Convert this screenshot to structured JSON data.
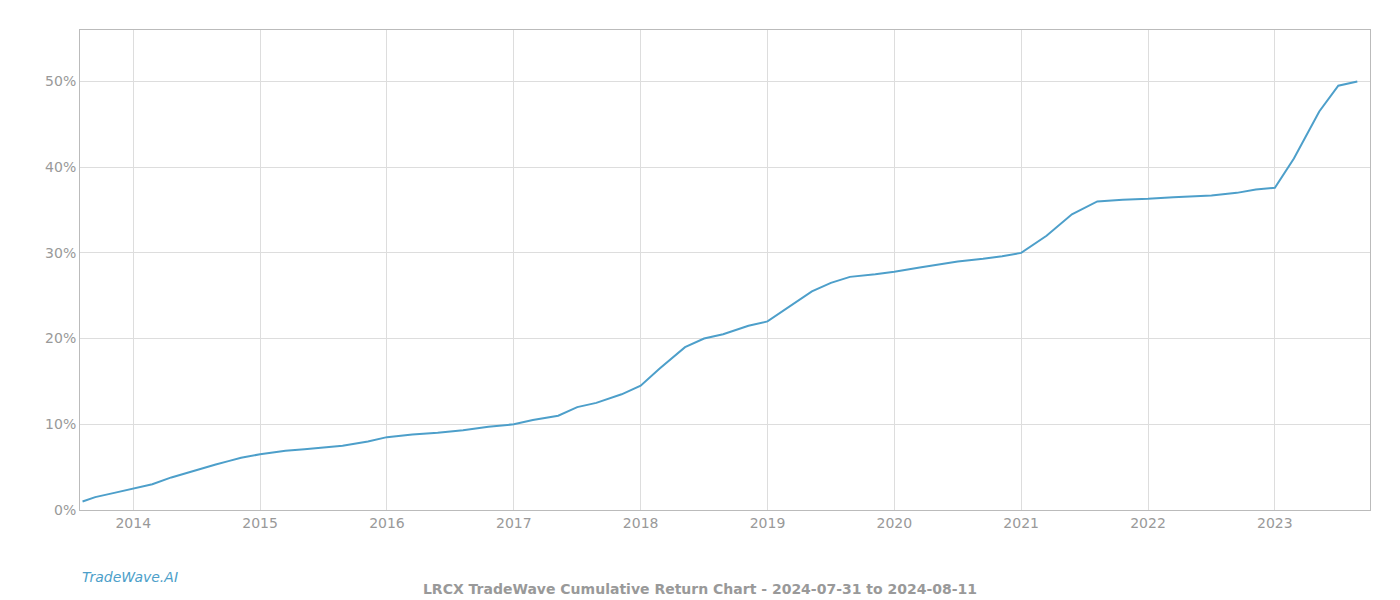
{
  "chart_data": {
    "type": "line",
    "title": "LRCX TradeWave Cumulative Return Chart - 2024-07-31 to 2024-08-11",
    "annotations": [
      {
        "text": "TradeWave.AI"
      }
    ],
    "color": "#4d9fca",
    "x": [
      2013.6,
      2013.7,
      2013.85,
      2014.0,
      2014.15,
      2014.3,
      2014.5,
      2014.65,
      2014.75,
      2014.85,
      2015.0,
      2015.1,
      2015.2,
      2015.35,
      2015.5,
      2015.65,
      2015.85,
      2016.0,
      2016.2,
      2016.4,
      2016.6,
      2016.8,
      2017.0,
      2017.15,
      2017.35,
      2017.5,
      2017.65,
      2017.85,
      2018.0,
      2018.15,
      2018.35,
      2018.5,
      2018.65,
      2018.85,
      2019.0,
      2019.15,
      2019.35,
      2019.5,
      2019.65,
      2019.85,
      2020.0,
      2020.2,
      2020.5,
      2020.7,
      2020.85,
      2021.0,
      2021.2,
      2021.4,
      2021.6,
      2021.8,
      2022.0,
      2022.2,
      2022.5,
      2022.7,
      2022.85,
      2023.0,
      2023.15,
      2023.35,
      2023.5,
      2023.65
    ],
    "values": [
      0.01,
      0.015,
      0.02,
      0.025,
      0.03,
      0.038,
      0.047,
      0.053,
      0.057,
      0.061,
      0.065,
      0.067,
      0.069,
      0.071,
      0.073,
      0.075,
      0.08,
      0.085,
      0.088,
      0.09,
      0.093,
      0.097,
      0.1,
      0.105,
      0.11,
      0.12,
      0.125,
      0.135,
      0.145,
      0.165,
      0.19,
      0.2,
      0.205,
      0.215,
      0.22,
      0.235,
      0.255,
      0.265,
      0.272,
      0.275,
      0.278,
      0.283,
      0.29,
      0.293,
      0.296,
      0.3,
      0.32,
      0.345,
      0.36,
      0.362,
      0.363,
      0.365,
      0.367,
      0.37,
      0.374,
      0.376,
      0.41,
      0.465,
      0.495,
      0.5
    ],
    "xlim": [
      2013.58,
      2023.75
    ],
    "xticks": [
      2014,
      2015,
      2016,
      2017,
      2018,
      2019,
      2020,
      2021,
      2022,
      2023
    ],
    "ylim": [
      0.0,
      0.56
    ],
    "yticks": [
      {
        "value": 0.0,
        "label": "0%"
      },
      {
        "value": 0.1,
        "label": "10%"
      },
      {
        "value": 0.2,
        "label": "20%"
      },
      {
        "value": 0.3,
        "label": "30%"
      },
      {
        "value": 0.4,
        "label": "40%"
      },
      {
        "value": 0.5,
        "label": "50%"
      }
    ],
    "grid": true
  }
}
